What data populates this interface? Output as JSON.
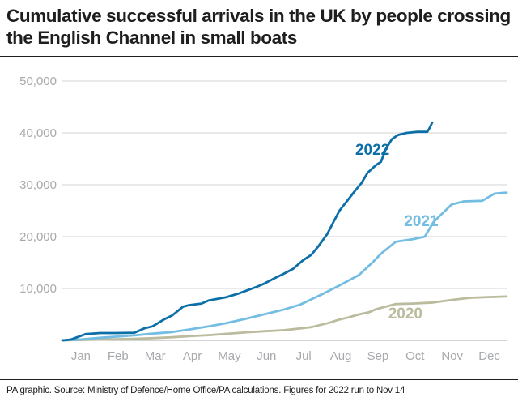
{
  "title": "Cumulative successful arrivals in the UK by people crossing the English Channel in small boats",
  "source": "PA graphic. Source: Ministry of Defence/Home Office/PA calculations. Figures for 2022 run to Nov 14",
  "chart_data": {
    "type": "line",
    "title": "Cumulative successful arrivals in the UK by people crossing the English Channel in small boats",
    "xlabel": "",
    "ylabel": "",
    "x_ticks": [
      "Jan",
      "Feb",
      "Mar",
      "Apr",
      "May",
      "Jun",
      "Jul",
      "Aug",
      "Sep",
      "Oct",
      "Nov",
      "Dec"
    ],
    "y_ticks": [
      "10,000",
      "20,000",
      "30,000",
      "40,000",
      "50,000"
    ],
    "y_tick_values": [
      10000,
      20000,
      30000,
      40000,
      50000
    ],
    "xlim": [
      1,
      365
    ],
    "ylim": [
      0,
      50000
    ],
    "grid": "horizontal",
    "legend": "none (series labelled directly on lines)",
    "x_unit": "day of year",
    "series": [
      {
        "name": "2020",
        "color": "#bbbb9e",
        "points": [
          [
            1,
            0
          ],
          [
            15,
            60
          ],
          [
            32,
            150
          ],
          [
            45,
            220
          ],
          [
            60,
            300
          ],
          [
            75,
            420
          ],
          [
            91,
            600
          ],
          [
            105,
            800
          ],
          [
            121,
            1000
          ],
          [
            135,
            1250
          ],
          [
            152,
            1550
          ],
          [
            166,
            1750
          ],
          [
            182,
            1950
          ],
          [
            196,
            2300
          ],
          [
            205,
            2550
          ],
          [
            213,
            3000
          ],
          [
            220,
            3400
          ],
          [
            227,
            3950
          ],
          [
            235,
            4400
          ],
          [
            244,
            5000
          ],
          [
            252,
            5400
          ],
          [
            258,
            6000
          ],
          [
            266,
            6500
          ],
          [
            274,
            7000
          ],
          [
            288,
            7100
          ],
          [
            305,
            7300
          ],
          [
            320,
            7800
          ],
          [
            335,
            8200
          ],
          [
            350,
            8350
          ],
          [
            365,
            8450
          ]
        ]
      },
      {
        "name": "2021",
        "color": "#74bde2",
        "points": [
          [
            1,
            0
          ],
          [
            15,
            150
          ],
          [
            32,
            500
          ],
          [
            45,
            700
          ],
          [
            60,
            950
          ],
          [
            75,
            1300
          ],
          [
            91,
            1600
          ],
          [
            105,
            2100
          ],
          [
            121,
            2700
          ],
          [
            135,
            3300
          ],
          [
            152,
            4200
          ],
          [
            166,
            5000
          ],
          [
            182,
            5900
          ],
          [
            196,
            6900
          ],
          [
            213,
            8800
          ],
          [
            228,
            10600
          ],
          [
            244,
            12600
          ],
          [
            255,
            15000
          ],
          [
            262,
            16700
          ],
          [
            274,
            19000
          ],
          [
            288,
            19500
          ],
          [
            298,
            20000
          ],
          [
            305,
            22800
          ],
          [
            312,
            24400
          ],
          [
            320,
            26200
          ],
          [
            330,
            26800
          ],
          [
            345,
            26900
          ],
          [
            355,
            28300
          ],
          [
            365,
            28500
          ]
        ]
      },
      {
        "name": "2022",
        "color": "#0c6fa8",
        "points": [
          [
            1,
            0
          ],
          [
            8,
            150
          ],
          [
            20,
            1200
          ],
          [
            32,
            1400
          ],
          [
            45,
            1400
          ],
          [
            60,
            1450
          ],
          [
            68,
            2300
          ],
          [
            75,
            2700
          ],
          [
            84,
            4000
          ],
          [
            91,
            4800
          ],
          [
            100,
            6500
          ],
          [
            105,
            6800
          ],
          [
            115,
            7100
          ],
          [
            121,
            7700
          ],
          [
            135,
            8300
          ],
          [
            145,
            9000
          ],
          [
            152,
            9600
          ],
          [
            160,
            10300
          ],
          [
            166,
            10900
          ],
          [
            175,
            12000
          ],
          [
            182,
            12800
          ],
          [
            190,
            13800
          ],
          [
            198,
            15400
          ],
          [
            205,
            16500
          ],
          [
            211,
            18200
          ],
          [
            218,
            20500
          ],
          [
            224,
            23200
          ],
          [
            228,
            25000
          ],
          [
            235,
            27100
          ],
          [
            241,
            28900
          ],
          [
            246,
            30300
          ],
          [
            251,
            32300
          ],
          [
            258,
            33800
          ],
          [
            262,
            34400
          ],
          [
            266,
            36900
          ],
          [
            271,
            38800
          ],
          [
            276,
            39600
          ],
          [
            283,
            40000
          ],
          [
            292,
            40200
          ],
          [
            300,
            40200
          ],
          [
            302,
            41000
          ],
          [
            304,
            42000
          ]
        ]
      }
    ],
    "series_labels": {
      "2020": "2020",
      "2021": "2021",
      "2022": "2022"
    }
  }
}
